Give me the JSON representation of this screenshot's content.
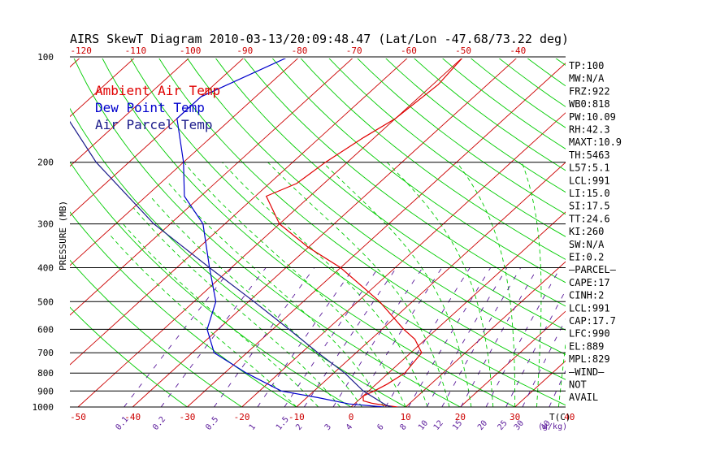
{
  "chart_data": {
    "type": "line",
    "title": "AIRS SkewT Diagram 2010-03-13/20:09:48.47 (Lat/Lon -47.68/73.22 deg)",
    "ylabel": "PRESSURE (MB)",
    "xlabel_right": "T(C)",
    "mixing_ratio_label": "(g/kg)",
    "y_scale": "log",
    "ylim": [
      1000,
      100
    ],
    "xlim": [
      -50,
      40
    ],
    "top_temp_ticks": [
      "-120",
      "-110",
      "-100",
      "-90",
      "-80",
      "-70",
      "-60",
      "-50",
      "-40"
    ],
    "bottom_temp_ticks": [
      "-50",
      "-40",
      "-30",
      "-20",
      "-10",
      "0",
      "10",
      "20",
      "30",
      "40"
    ],
    "pressure_ticks": [
      "100",
      "200",
      "300",
      "400",
      "500",
      "600",
      "700",
      "800",
      "900",
      "1000"
    ],
    "mixing_ratio_ticks": [
      "0.1",
      "0.2",
      "0.5",
      "1",
      "1.5",
      "2",
      "3",
      "4",
      "6",
      "8",
      "10",
      "12",
      "15",
      "20",
      "25",
      "30",
      "40"
    ],
    "legend": [
      {
        "name": "Ambient Air Temp",
        "color": "#e00000"
      },
      {
        "name": "Dew Point Temp",
        "color": "#0000cc"
      },
      {
        "name": "Air Parcel Temp",
        "color": "#1a1a8a"
      }
    ],
    "series": [
      {
        "name": "Ambient Air Temp",
        "color": "#e00000",
        "points": [
          {
            "p": 1000,
            "t": 8.5
          },
          {
            "p": 990,
            "t": 6
          },
          {
            "p": 975,
            "t": 3
          },
          {
            "p": 960,
            "t": 1
          },
          {
            "p": 930,
            "t": 0
          },
          {
            "p": 900,
            "t": 1
          },
          {
            "p": 860,
            "t": 2
          },
          {
            "p": 800,
            "t": 3
          },
          {
            "p": 700,
            "t": 2
          },
          {
            "p": 640,
            "t": -2
          },
          {
            "p": 600,
            "t": -6
          },
          {
            "p": 500,
            "t": -16
          },
          {
            "p": 400,
            "t": -30
          },
          {
            "p": 350,
            "t": -40
          },
          {
            "p": 300,
            "t": -50
          },
          {
            "p": 250,
            "t": -58
          },
          {
            "p": 230,
            "t": -55
          },
          {
            "p": 200,
            "t": -54
          },
          {
            "p": 170,
            "t": -52
          },
          {
            "p": 150,
            "t": -50
          },
          {
            "p": 120,
            "t": -49
          },
          {
            "p": 100,
            "t": -50
          }
        ]
      },
      {
        "name": "Dew Point Temp",
        "color": "#0000cc",
        "points": [
          {
            "p": 1000,
            "t": 6
          },
          {
            "p": 980,
            "t": -1
          },
          {
            "p": 940,
            "t": -8
          },
          {
            "p": 900,
            "t": -16
          },
          {
            "p": 800,
            "t": -26
          },
          {
            "p": 700,
            "t": -36
          },
          {
            "p": 600,
            "t": -42
          },
          {
            "p": 500,
            "t": -46
          },
          {
            "p": 400,
            "t": -54
          },
          {
            "p": 300,
            "t": -64
          },
          {
            "p": 250,
            "t": -73
          },
          {
            "p": 200,
            "t": -80
          },
          {
            "p": 150,
            "t": -90
          },
          {
            "p": 130,
            "t": -90
          },
          {
            "p": 100,
            "t": -82
          }
        ]
      },
      {
        "name": "Air Parcel Temp",
        "color": "#1a1a8a",
        "points": [
          {
            "p": 1000,
            "t": 7.5
          },
          {
            "p": 990,
            "t": 6.2
          },
          {
            "p": 900,
            "t": -1
          },
          {
            "p": 800,
            "t": -8
          },
          {
            "p": 700,
            "t": -17
          },
          {
            "p": 600,
            "t": -27
          },
          {
            "p": 500,
            "t": -39
          },
          {
            "p": 400,
            "t": -54
          },
          {
            "p": 300,
            "t": -73
          },
          {
            "p": 200,
            "t": -96
          },
          {
            "p": 150,
            "t": -110
          },
          {
            "p": 100,
            "t": -126
          }
        ]
      }
    ],
    "stats": [
      "TP:100",
      "MW:N/A",
      "FRZ:922",
      "WB0:818",
      "PW:10.09",
      "RH:42.3",
      "MAXT:10.9",
      "TH:5463",
      "L57:5.1",
      "LCL:991",
      "LI:15.0",
      "SI:17.5",
      "TT:24.6",
      "KI:260",
      "SW:N/A",
      "EI:0.2",
      "–PARCEL–",
      "CAPE:17",
      "CINH:2",
      "LCL:991",
      "CAP:17.7",
      "LFC:990",
      "EL:889",
      "MPL:829",
      "–WIND–",
      "NOT",
      "AVAIL"
    ],
    "colors": {
      "isotherm": "#cc0000",
      "dry_adiabat": "#00cc00",
      "moist_adiabat": "#00cc00",
      "mixing_ratio": "#5a1a9a",
      "isobar": "#000000"
    }
  }
}
